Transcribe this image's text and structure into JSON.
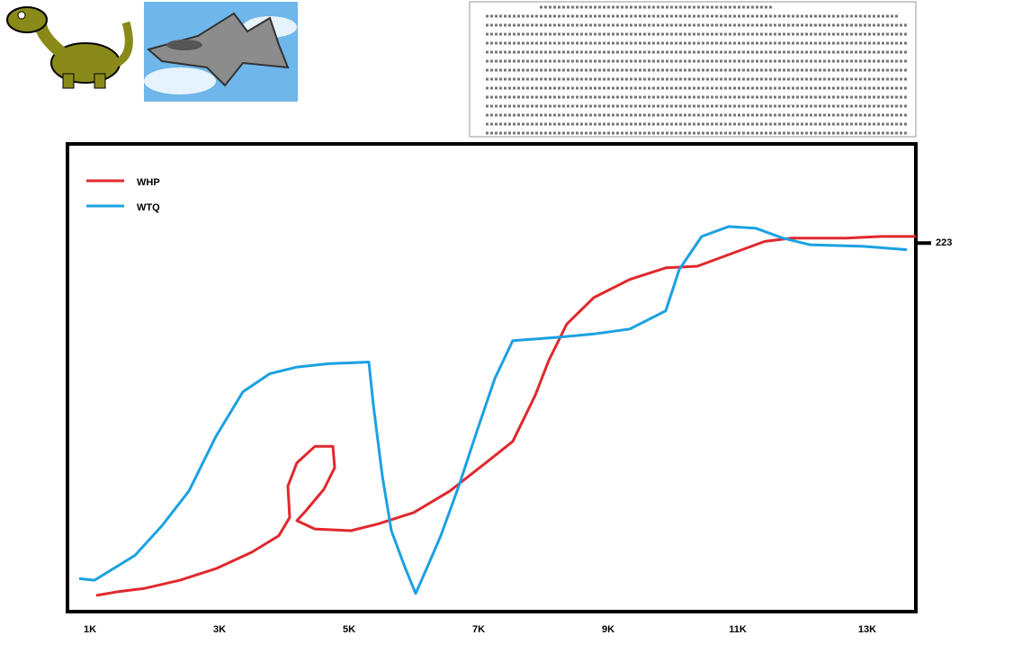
{
  "chart_data": {
    "type": "line",
    "xlim": [
      653,
      13750
    ],
    "xticks": [
      {
        "value": 1000,
        "label": "1K"
      },
      {
        "value": 3000,
        "label": "3K"
      },
      {
        "value": 5000,
        "label": "5K"
      },
      {
        "value": 7000,
        "label": "7K"
      },
      {
        "value": 9000,
        "label": "9K"
      },
      {
        "value": 11000,
        "label": "11K"
      },
      {
        "value": 13000,
        "label": "13K"
      }
    ],
    "ylim": [
      0,
      283
    ],
    "yticks": [
      223
    ],
    "legend": "upper left",
    "series": [
      {
        "name": "WHP",
        "color": "#e0282e",
        "x": [
          1097,
          1417,
          1833,
          2389,
          2944,
          3500,
          3917,
          4083,
          4056,
          4194,
          4472,
          4750,
          4778,
          4611,
          4333,
          4194,
          4472,
          5028,
          5444,
          6000,
          6556,
          7111,
          7528,
          7875,
          8083,
          8361,
          8778,
          9333,
          9889,
          10375,
          10861,
          11417,
          11833,
          12667,
          13222,
          13750
        ],
        "values": [
          9.8,
          12,
          14,
          19,
          26,
          36,
          46,
          57,
          76,
          90,
          100,
          100,
          87,
          74,
          61,
          55,
          50,
          49,
          53,
          60,
          73,
          90,
          103,
          131,
          152,
          174,
          190,
          201,
          208,
          209,
          216,
          224,
          226,
          226,
          227,
          227
        ]
      },
      {
        "name": "WTQ",
        "color": "#1ba1e2",
        "x": [
          833,
          1069,
          1278,
          1694,
          2111,
          2528,
          2944,
          3361,
          3778,
          4194,
          4681,
          5306,
          5375,
          5514,
          5653,
          5861,
          6028,
          6208,
          6417,
          6694,
          6972,
          7250,
          7528,
          8222,
          8778,
          9333,
          9889,
          10097,
          10444,
          10861,
          11278,
          11694,
          12111,
          12944,
          13611
        ],
        "values": [
          20,
          19,
          24,
          34,
          52,
          73,
          106,
          133,
          144,
          148,
          150,
          151,
          125,
          82,
          49,
          27,
          11,
          27,
          46,
          76,
          109,
          141,
          164,
          166,
          168,
          171,
          182,
          207,
          227,
          233,
          232,
          226,
          222,
          221,
          219
        ]
      }
    ]
  }
}
